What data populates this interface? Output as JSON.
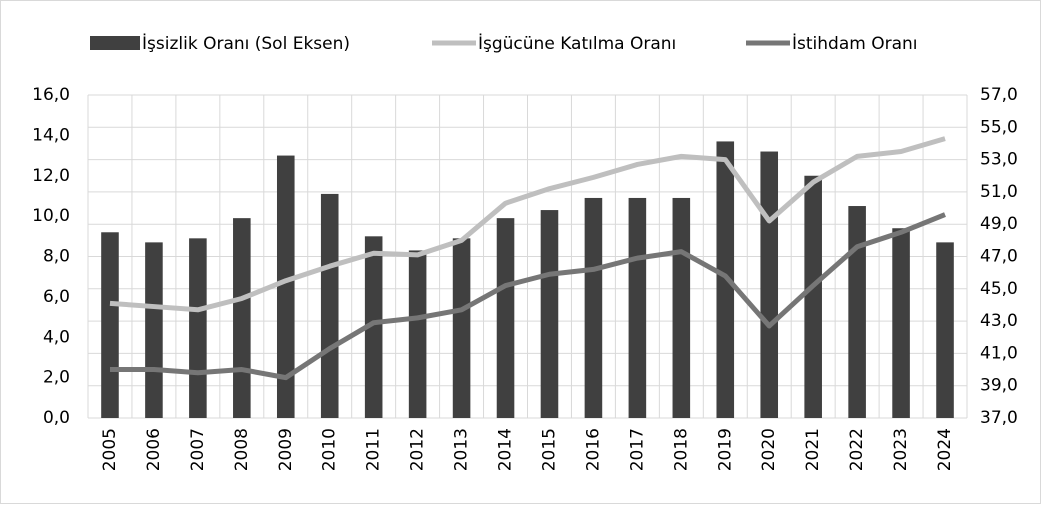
{
  "chart_data": {
    "type": "bar_line",
    "categories": [
      "2005",
      "2006",
      "2007",
      "2008",
      "2009",
      "2010",
      "2011",
      "2012",
      "2013",
      "2014",
      "2015",
      "2016",
      "2017",
      "2018",
      "2019",
      "2020",
      "2021",
      "2022",
      "2023",
      "2024"
    ],
    "series": [
      {
        "name": "İşsizlik Oranı (Sol Eksen)",
        "type": "bar",
        "color": "#404040",
        "values": [
          9.2,
          8.7,
          8.9,
          9.9,
          13.0,
          11.1,
          9.0,
          8.3,
          8.9,
          9.9,
          10.3,
          10.9,
          10.9,
          10.9,
          13.7,
          13.2,
          12.0,
          10.5,
          9.4,
          8.7
        ]
      },
      {
        "name": "İşgücüne Katılma Oranı",
        "type": "line",
        "axis": "y2",
        "color": "#bfbfbf",
        "values": [
          44.1,
          43.9,
          43.7,
          44.4,
          45.5,
          46.4,
          47.2,
          47.1,
          48.0,
          50.3,
          51.2,
          51.9,
          52.7,
          53.2,
          53.0,
          49.2,
          51.6,
          53.2,
          53.5,
          54.3
        ]
      },
      {
        "name": "İstihdam Oranı",
        "type": "line",
        "axis": "y2",
        "color": "#767676",
        "values": [
          40.0,
          40.0,
          39.8,
          40.0,
          39.5,
          41.3,
          42.9,
          43.2,
          43.7,
          45.2,
          45.9,
          46.2,
          46.9,
          47.3,
          45.8,
          42.7,
          45.2,
          47.6,
          48.5,
          49.6
        ]
      }
    ],
    "ylim": [
      0,
      16
    ],
    "yticks": [
      {
        "value": 0,
        "label": "0,0"
      },
      {
        "value": 2,
        "label": "2,0"
      },
      {
        "value": 4,
        "label": "4,0"
      },
      {
        "value": 6,
        "label": "6,0"
      },
      {
        "value": 8,
        "label": "8,0"
      },
      {
        "value": 10,
        "label": "10,0"
      },
      {
        "value": 12,
        "label": "12,0"
      },
      {
        "value": 14,
        "label": "14,0"
      },
      {
        "value": 16,
        "label": "16,0"
      }
    ],
    "y2lim": [
      37,
      57
    ],
    "y2ticks": [
      {
        "value": 37,
        "label": "37,0"
      },
      {
        "value": 39,
        "label": "39,0"
      },
      {
        "value": 41,
        "label": "41,0"
      },
      {
        "value": 43,
        "label": "43,0"
      },
      {
        "value": 45,
        "label": "45,0"
      },
      {
        "value": 47,
        "label": "47,0"
      },
      {
        "value": 49,
        "label": "49,0"
      },
      {
        "value": 51,
        "label": "51,0"
      },
      {
        "value": 53,
        "label": "53,0"
      },
      {
        "value": 55,
        "label": "55,0"
      },
      {
        "value": 57,
        "label": "57,0"
      }
    ],
    "grid": true,
    "legend": "top"
  }
}
